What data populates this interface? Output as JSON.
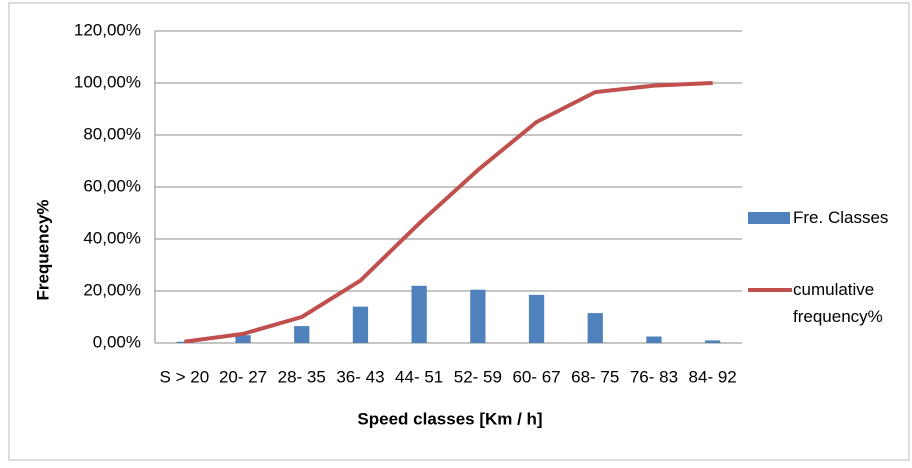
{
  "chart_data": {
    "type": "bar-line",
    "x_label": "Speed classes [Km / h]",
    "y_label": "Frequency%",
    "categories": [
      "S > 20",
      "20- 27",
      "28- 35",
      "36- 43",
      "44- 51",
      "52- 59",
      "60- 67",
      "68- 75",
      "76- 83",
      "84- 92"
    ],
    "series": [
      {
        "name": "Fre. Classes",
        "type": "bar",
        "color": "#4f81bd",
        "values": [
          0.5,
          3,
          6.5,
          14,
          22,
          20.5,
          18.5,
          11.5,
          2.5,
          1
        ]
      },
      {
        "name": "cumulative frequency%",
        "type": "line",
        "color": "#c0504d",
        "values": [
          0.5,
          3.5,
          10,
          24,
          46,
          66.5,
          85,
          96.5,
          99,
          100
        ]
      }
    ],
    "ylim": [
      0,
      120
    ],
    "yticks": [
      {
        "value": 0,
        "label": "0,00%"
      },
      {
        "value": 20,
        "label": "20,00%"
      },
      {
        "value": 40,
        "label": "40,00%"
      },
      {
        "value": 60,
        "label": "60,00%"
      },
      {
        "value": 80,
        "label": "80,00%"
      },
      {
        "value": 100,
        "label": "100,00%"
      },
      {
        "value": 120,
        "label": "120,00%"
      }
    ],
    "grid": true,
    "legend": "right"
  }
}
